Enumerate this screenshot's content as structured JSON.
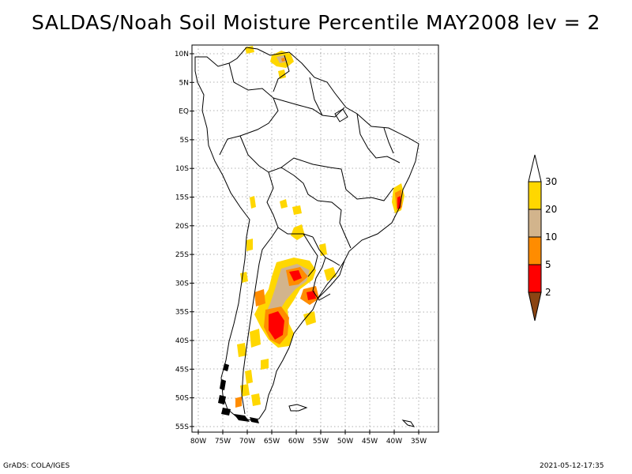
{
  "title": "SALDAS/Noah Soil Moisture Percentile MAY2008 lev = 2",
  "footer": {
    "left": "GrADS: COLA/IGES",
    "right": "2021-05-12-17:35"
  },
  "map": {
    "lat_labels": [
      "10N",
      "5N",
      "EQ",
      "5S",
      "10S",
      "15S",
      "20S",
      "25S",
      "30S",
      "35S",
      "40S",
      "45S",
      "50S",
      "55S"
    ],
    "lon_labels": [
      "80W",
      "75W",
      "70W",
      "65W",
      "60W",
      "55W",
      "50W",
      "45W",
      "40W",
      "35W"
    ]
  },
  "legend": {
    "labels": [
      "30",
      "20",
      "10",
      "5",
      "2"
    ],
    "colors": {
      "above_30": "#ffffff",
      "20_30": "#ffd700",
      "10_20": "#d2b48c",
      "5_10": "#ff8c00",
      "2_5": "#ff0000",
      "below_2": "#8b4513"
    }
  }
}
